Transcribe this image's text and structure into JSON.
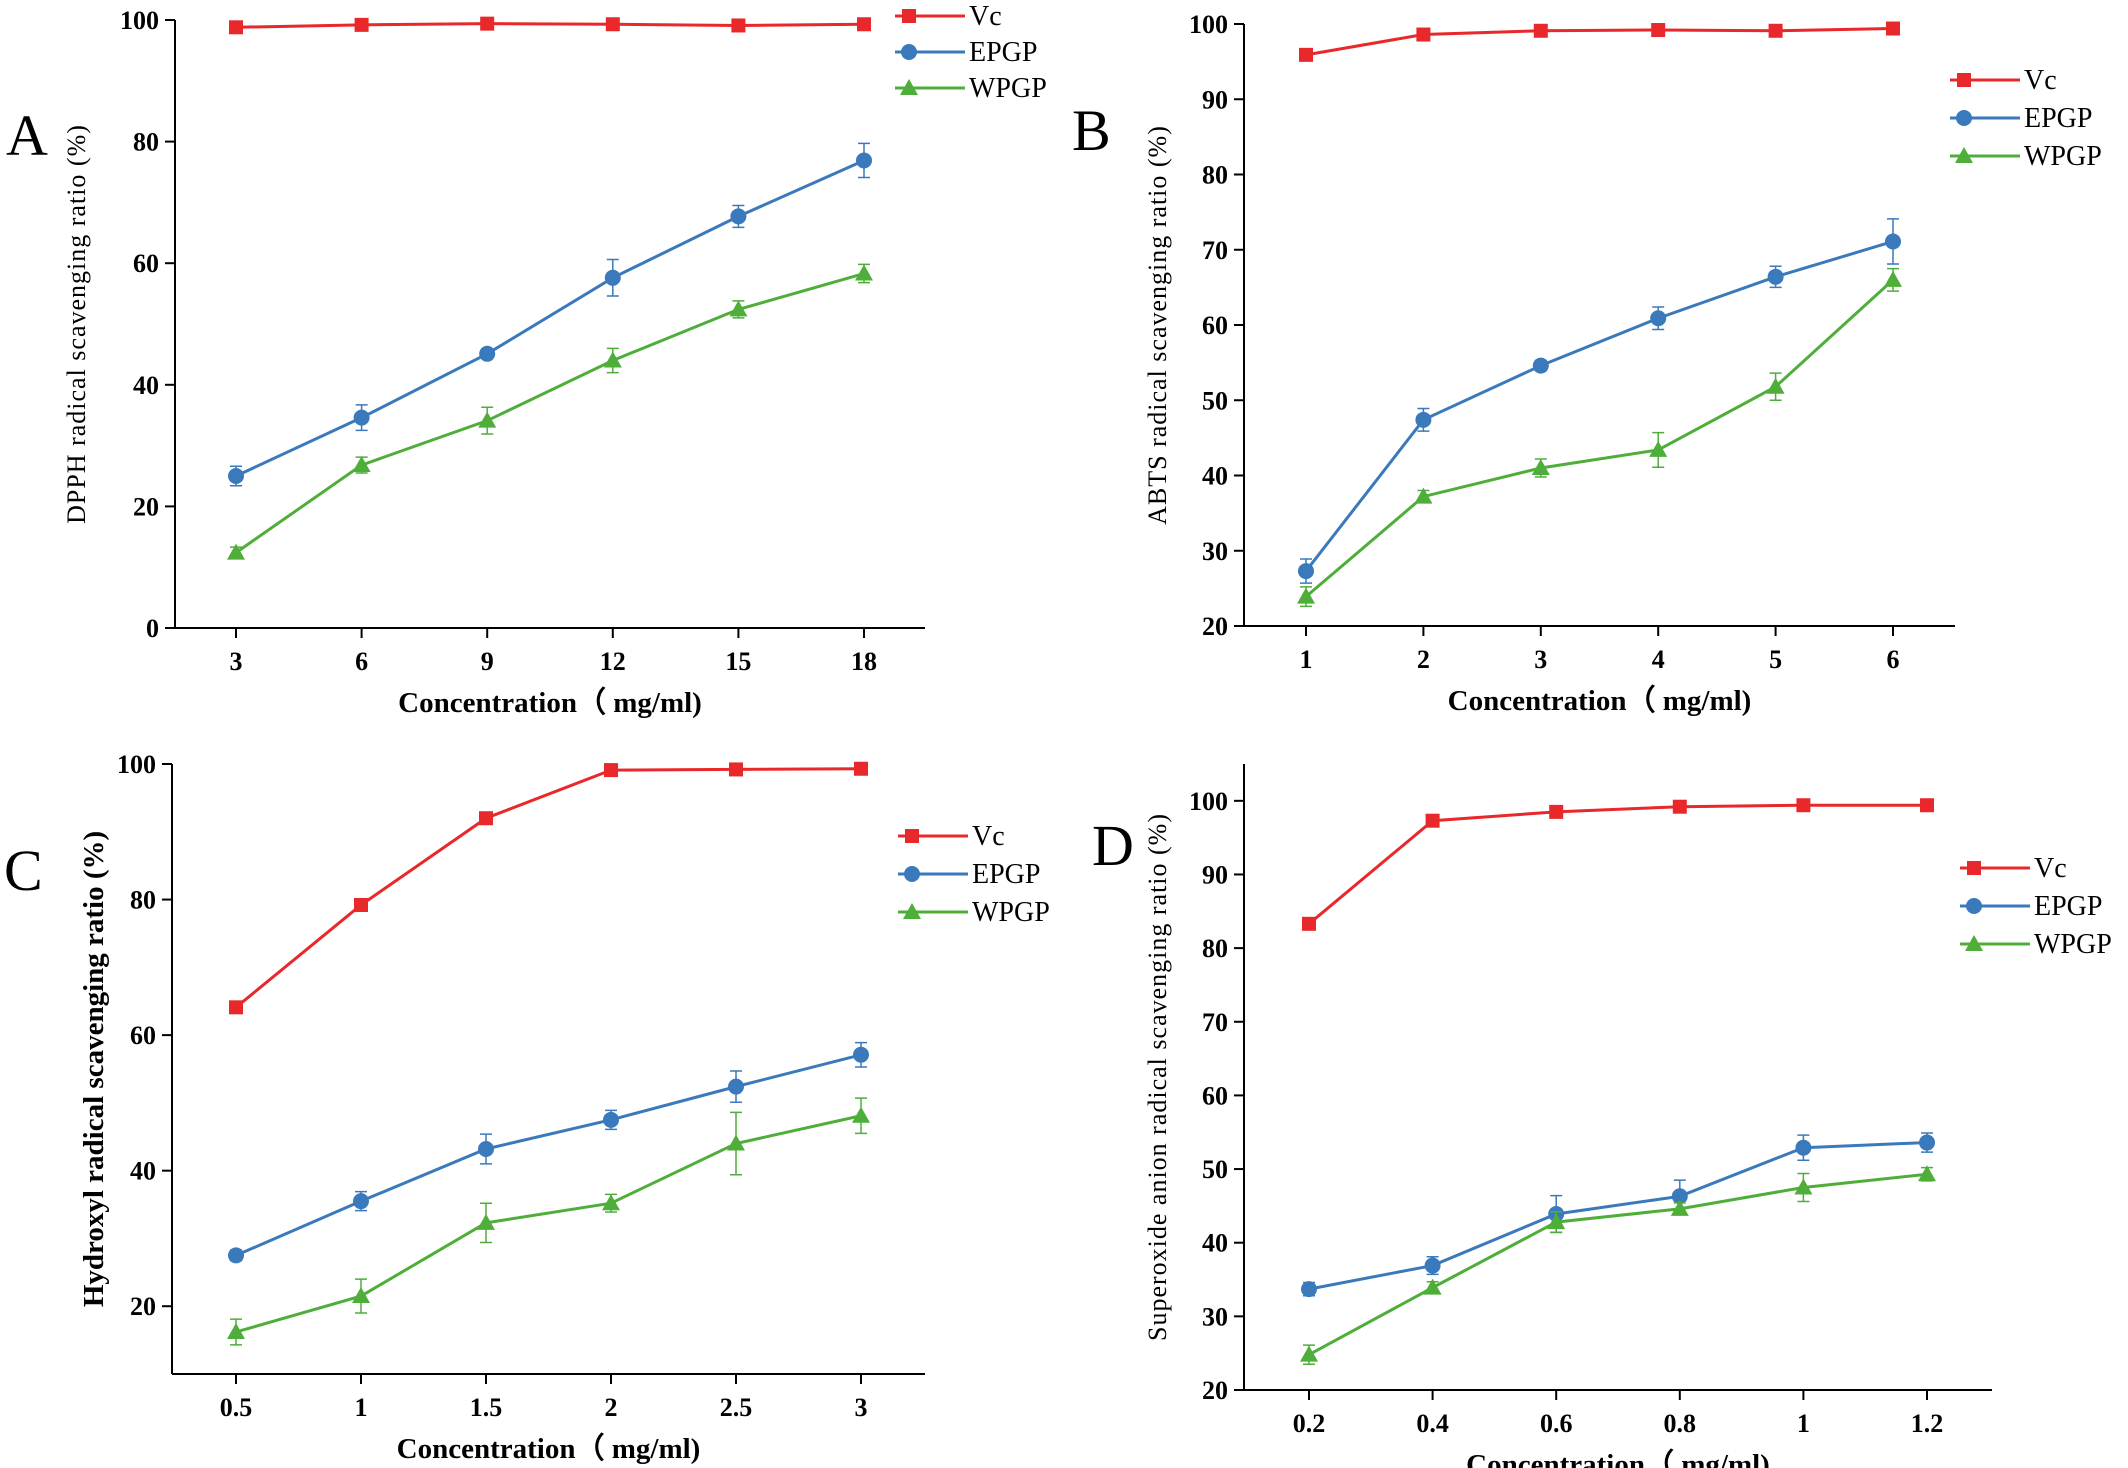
{
  "colors": {
    "vc": "#e8282a",
    "epgp": "#3a79bb",
    "wpgp": "#4fae3a"
  },
  "chart_data": [
    {
      "type": "line",
      "panel_label": "A",
      "title": "",
      "xlabel": "Concentration（ mg/ml)",
      "ylabel": "DPPH radical scavenging ratio (%)",
      "x": [
        3,
        6,
        9,
        12,
        15,
        18
      ],
      "xticks": [
        "3",
        "6",
        "9",
        "12",
        "15",
        "18"
      ],
      "ylim": [
        0,
        100
      ],
      "yticks": [
        "0",
        "20",
        "40",
        "60",
        "80",
        "100"
      ],
      "grid": false,
      "legend_position": "top-right",
      "series": [
        {
          "name": "Vc",
          "marker": "square",
          "values": [
            98.8,
            99.2,
            99.4,
            99.3,
            99.1,
            99.3
          ],
          "errors": [
            0.4,
            0.3,
            0.3,
            0.3,
            0.3,
            0.3
          ]
        },
        {
          "name": "EPGP",
          "marker": "circle",
          "values": [
            25.0,
            34.6,
            45.1,
            57.6,
            67.7,
            76.9
          ],
          "errors": [
            1.6,
            2.1,
            0.8,
            3.0,
            1.8,
            2.8
          ]
        },
        {
          "name": "WPGP",
          "marker": "triangle",
          "values": [
            12.4,
            26.8,
            34.1,
            44.0,
            52.4,
            58.3
          ],
          "errors": [
            0.9,
            1.3,
            2.2,
            2.0,
            1.4,
            1.5
          ]
        }
      ]
    },
    {
      "type": "line",
      "panel_label": "B",
      "title": "",
      "xlabel": "Concentration（ mg/ml)",
      "ylabel": "ABTS radical scavenging ratio (%)",
      "x": [
        1,
        2,
        3,
        4,
        5,
        6
      ],
      "xticks": [
        "1",
        "2",
        "3",
        "4",
        "5",
        "6"
      ],
      "ylim": [
        20,
        100
      ],
      "yticks": [
        "20",
        "30",
        "40",
        "50",
        "60",
        "70",
        "80",
        "90",
        "100"
      ],
      "grid": false,
      "legend_position": "top-right",
      "series": [
        {
          "name": "Vc",
          "marker": "square",
          "values": [
            95.9,
            98.6,
            99.1,
            99.2,
            99.1,
            99.4
          ],
          "errors": [
            0.5,
            0.3,
            0.3,
            0.3,
            0.3,
            0.3
          ]
        },
        {
          "name": "EPGP",
          "marker": "circle",
          "values": [
            27.3,
            47.4,
            54.6,
            60.9,
            66.4,
            71.1
          ],
          "errors": [
            1.6,
            1.5,
            0.7,
            1.5,
            1.4,
            3.0
          ]
        },
        {
          "name": "WPGP",
          "marker": "triangle",
          "values": [
            23.9,
            37.2,
            41.0,
            43.4,
            51.8,
            66.0
          ],
          "errors": [
            1.3,
            0.8,
            1.2,
            2.3,
            1.8,
            1.5
          ]
        }
      ]
    },
    {
      "type": "line",
      "panel_label": "C",
      "title": "",
      "xlabel": "Concentration（ mg/ml)",
      "ylabel": "Hydroxyl radical scavenging ratio (%)",
      "x": [
        0.5,
        1,
        1.5,
        2,
        2.5,
        3
      ],
      "xticks": [
        "0.5",
        "1",
        "1.5",
        "2",
        "2.5",
        "3"
      ],
      "ylim": [
        10,
        100
      ],
      "yticks": [
        "20",
        "40",
        "60",
        "80",
        "100"
      ],
      "grid": false,
      "legend_position": "top-right",
      "series": [
        {
          "name": "Vc",
          "marker": "square",
          "values": [
            64.1,
            79.2,
            92.0,
            99.1,
            99.2,
            99.3
          ],
          "errors": [
            0.4,
            0.4,
            0.4,
            0.3,
            0.3,
            0.3
          ]
        },
        {
          "name": "EPGP",
          "marker": "circle",
          "values": [
            27.5,
            35.5,
            43.2,
            47.5,
            52.4,
            57.1
          ],
          "errors": [
            0.8,
            1.4,
            2.2,
            1.4,
            2.3,
            1.8
          ]
        },
        {
          "name": "WPGP",
          "marker": "triangle",
          "values": [
            16.2,
            21.5,
            32.3,
            35.2,
            44.0,
            48.1
          ],
          "errors": [
            1.9,
            2.5,
            2.9,
            1.3,
            4.6,
            2.6
          ]
        }
      ]
    },
    {
      "type": "line",
      "panel_label": "D",
      "title": "",
      "xlabel": "Concentration（ mg/ml)",
      "ylabel": "Superoxide anion radical scavenging ratio (%)",
      "x": [
        0.2,
        0.4,
        0.6,
        0.8,
        1.0,
        1.2
      ],
      "xticks": [
        "0.2",
        "0.4",
        "0.6",
        "0.8",
        "1",
        "1.2"
      ],
      "ylim": [
        20,
        105
      ],
      "yticks": [
        "20",
        "30",
        "40",
        "50",
        "60",
        "70",
        "80",
        "90",
        "100"
      ],
      "grid": false,
      "legend_position": "right",
      "series": [
        {
          "name": "Vc",
          "marker": "square",
          "values": [
            83.3,
            97.3,
            98.5,
            99.2,
            99.4,
            99.4
          ],
          "errors": [
            0.4,
            0.4,
            0.3,
            0.3,
            0.3,
            0.3
          ]
        },
        {
          "name": "EPGP",
          "marker": "circle",
          "values": [
            33.7,
            36.9,
            43.9,
            46.3,
            52.9,
            53.6
          ],
          "errors": [
            0.9,
            1.2,
            2.5,
            2.2,
            1.7,
            1.3
          ]
        },
        {
          "name": "WPGP",
          "marker": "triangle",
          "values": [
            24.8,
            33.9,
            42.8,
            44.6,
            47.5,
            49.3
          ],
          "errors": [
            1.3,
            0.8,
            1.4,
            0.8,
            1.9,
            0.9
          ]
        }
      ]
    }
  ]
}
